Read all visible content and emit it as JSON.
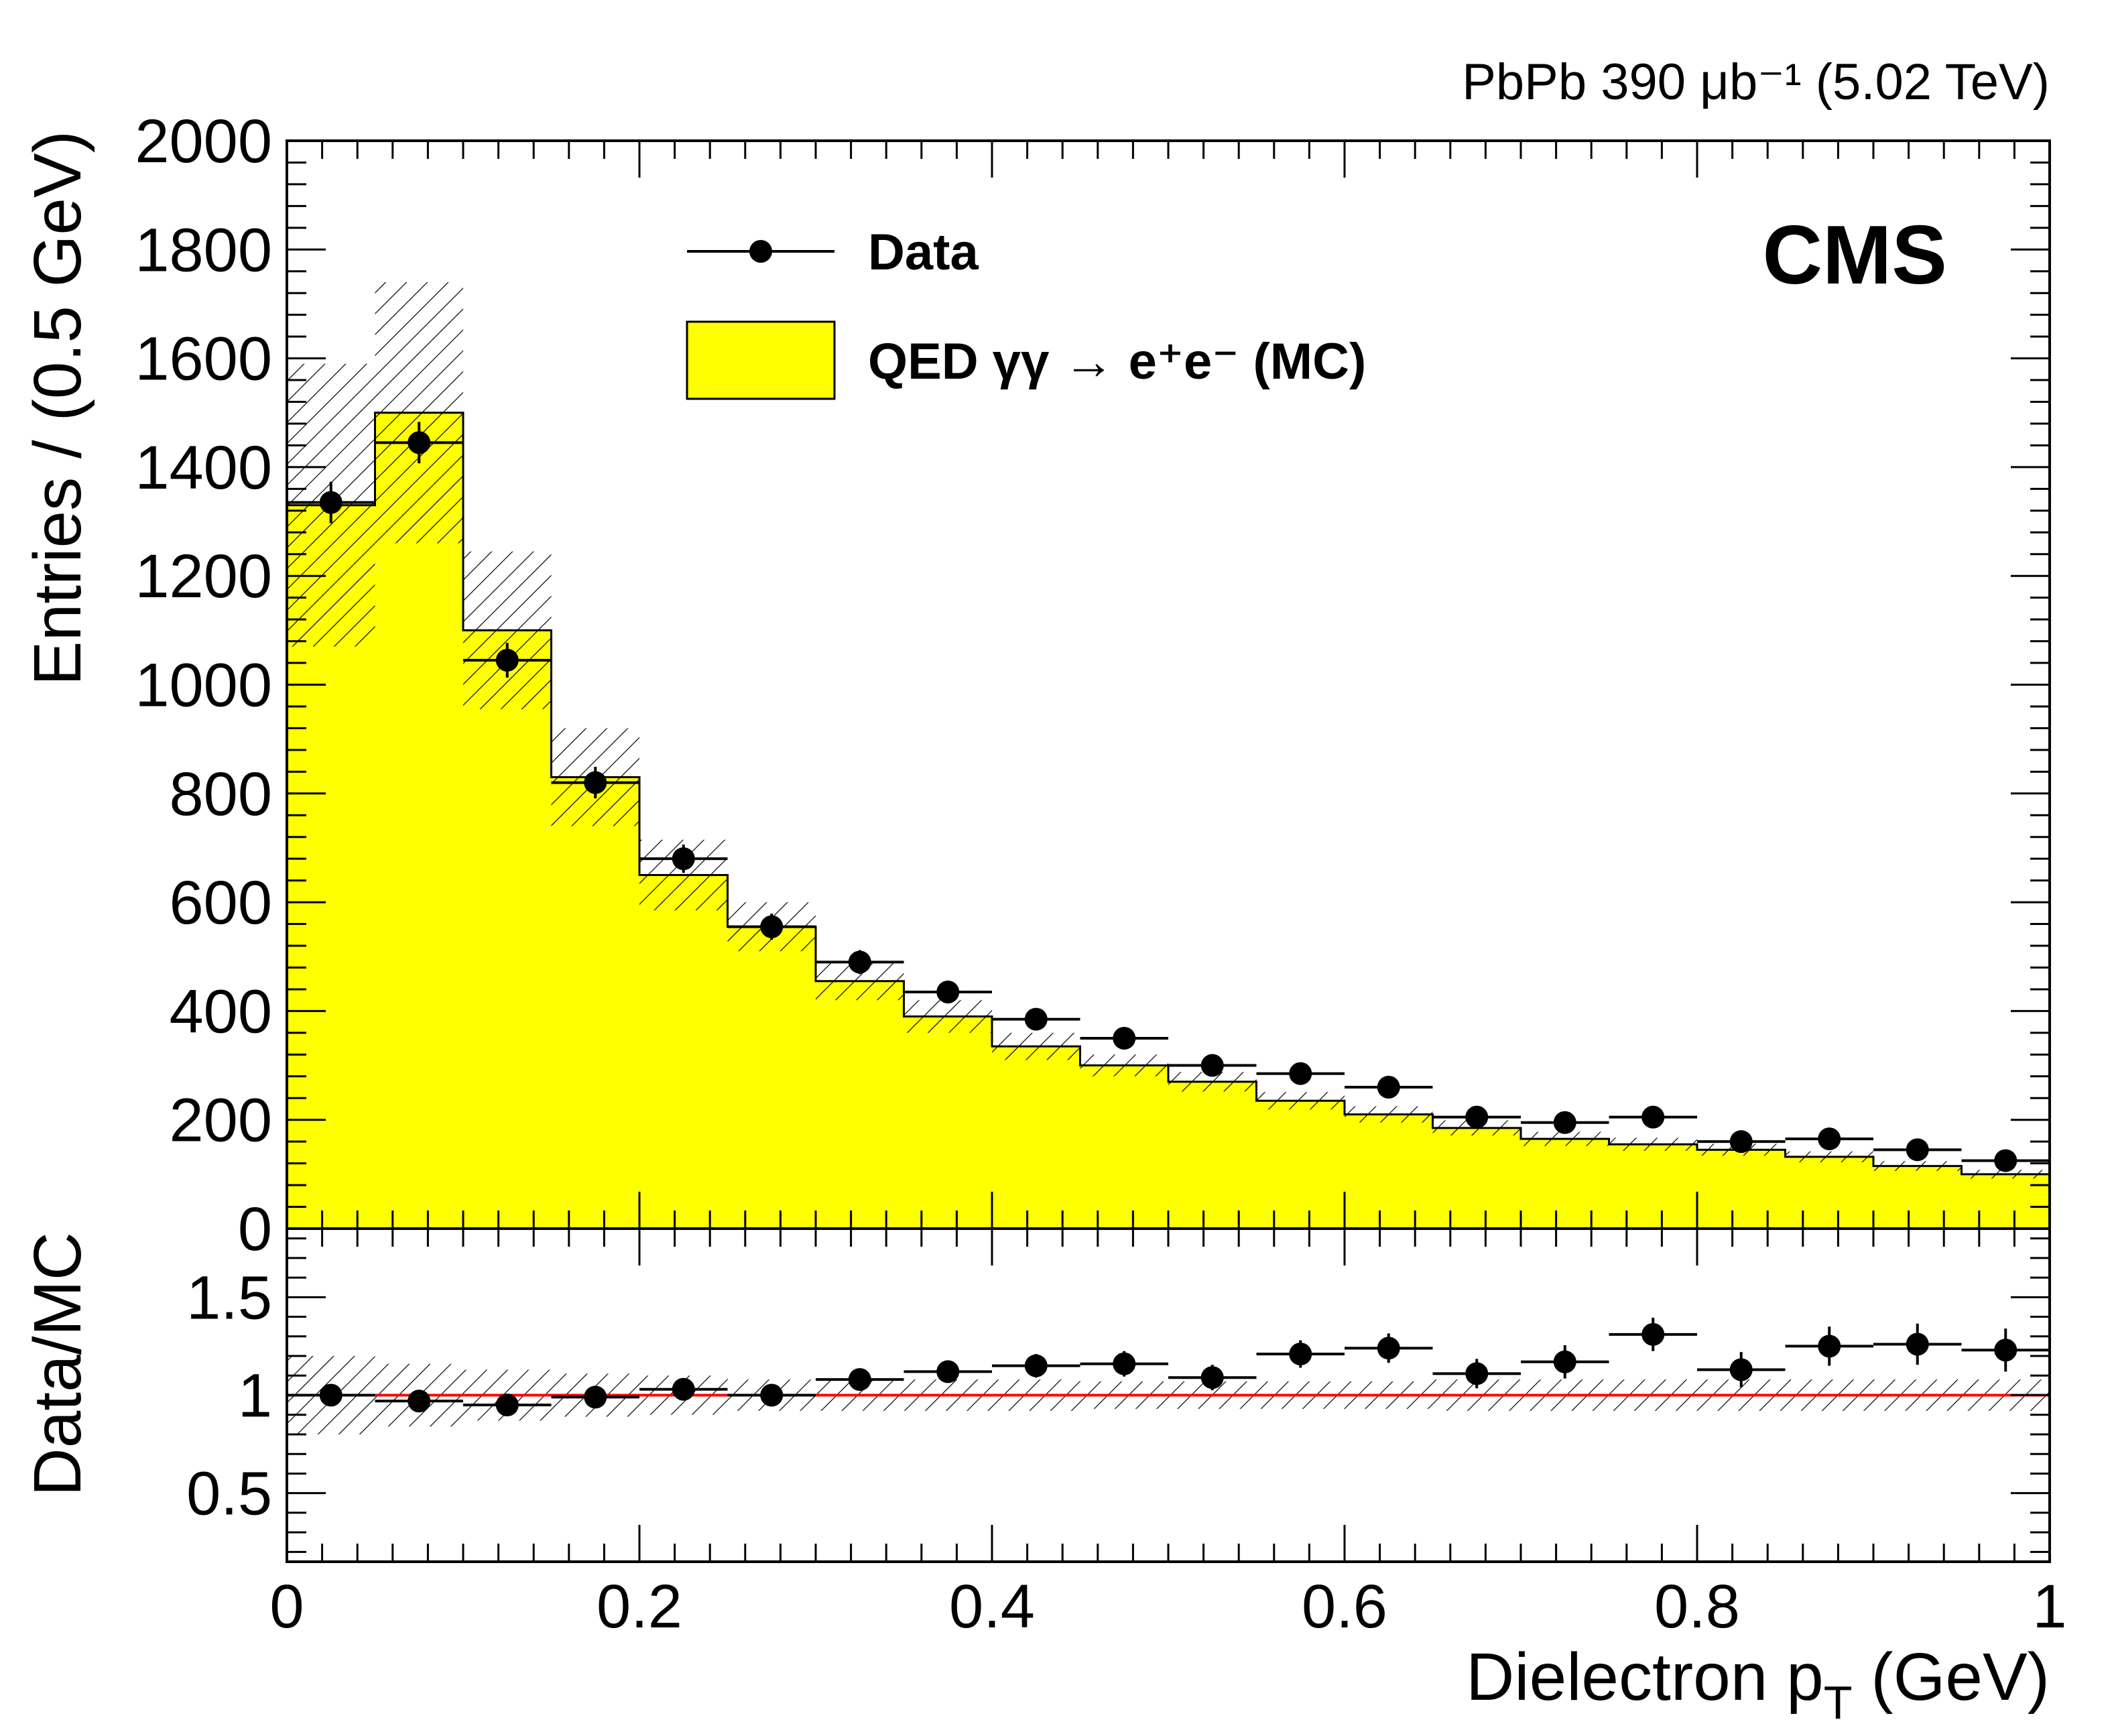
{
  "chart_data": [
    {
      "type": "histogram",
      "name": "main",
      "lumi_text": "PbPb 390 μb⁻¹ (5.02 TeV)",
      "cms_label": "CMS",
      "ylabel": "Entries / (0.5 GeV)",
      "xlim": [
        0,
        1
      ],
      "ylim": [
        0,
        2000
      ],
      "yticks": [
        "0",
        "200",
        "400",
        "600",
        "800",
        "1000",
        "1200",
        "1400",
        "1600",
        "1800",
        "2000"
      ],
      "bin_edges": [
        0,
        0.05,
        0.1,
        0.15,
        0.2,
        0.25,
        0.3,
        0.35,
        0.4,
        0.45,
        0.5,
        0.55,
        0.6,
        0.65,
        0.7,
        0.75,
        0.8,
        0.85,
        0.9,
        0.95,
        1.0
      ],
      "legend": {
        "data_label": "Data",
        "mc_label": "QED γγ → e⁺e⁻ (MC)"
      },
      "series": [
        {
          "name": "QED γγ → e⁺e⁻ (MC)",
          "style": "filled-histogram",
          "color": "#ffff00",
          "values": [
            1330,
            1500,
            1100,
            830,
            650,
            555,
            455,
            390,
            335,
            300,
            270,
            235,
            210,
            185,
            165,
            155,
            145,
            132,
            115,
            100
          ],
          "uncertainty": [
            260,
            240,
            145,
            90,
            65,
            45,
            35,
            30,
            25,
            20,
            18,
            16,
            15,
            14,
            13,
            12,
            11,
            10,
            9,
            8
          ]
        },
        {
          "name": "Data",
          "style": "points",
          "color": "#000000",
          "values": [
            1335,
            1445,
            1045,
            820,
            680,
            555,
            490,
            435,
            385,
            350,
            300,
            285,
            260,
            205,
            195,
            205,
            160,
            165,
            145,
            125
          ],
          "errors": [
            38,
            38,
            32,
            29,
            26,
            24,
            22,
            21,
            20,
            19,
            17,
            17,
            16,
            14,
            14,
            14,
            13,
            13,
            12,
            11
          ]
        }
      ]
    },
    {
      "type": "ratio",
      "name": "ratio",
      "ylabel": "Data/MC",
      "xlabel": "Dielectron p_T (GeV)",
      "xlim": [
        0,
        1
      ],
      "ylim": [
        0.15,
        1.85
      ],
      "xticks": [
        "0",
        "0.2",
        "0.4",
        "0.6",
        "0.8",
        "1"
      ],
      "yticks": [
        "0.5",
        "1",
        "1.5"
      ],
      "reference_line": {
        "value": 1,
        "color": "#ff0000"
      },
      "uncertainty_band": [
        0.2,
        0.16,
        0.13,
        0.11,
        0.1,
        0.08,
        0.08,
        0.08,
        0.08,
        0.07,
        0.07,
        0.07,
        0.07,
        0.08,
        0.08,
        0.08,
        0.08,
        0.08,
        0.08,
        0.08
      ],
      "values": [
        1.0,
        0.97,
        0.95,
        0.99,
        1.03,
        1.0,
        1.08,
        1.12,
        1.15,
        1.16,
        1.09,
        1.21,
        1.24,
        1.11,
        1.17,
        1.31,
        1.13,
        1.25,
        1.26,
        1.23
      ],
      "errors": [
        0.03,
        0.03,
        0.03,
        0.035,
        0.04,
        0.045,
        0.05,
        0.055,
        0.06,
        0.065,
        0.065,
        0.07,
        0.075,
        0.075,
        0.085,
        0.085,
        0.09,
        0.1,
        0.105,
        0.11
      ]
    }
  ]
}
